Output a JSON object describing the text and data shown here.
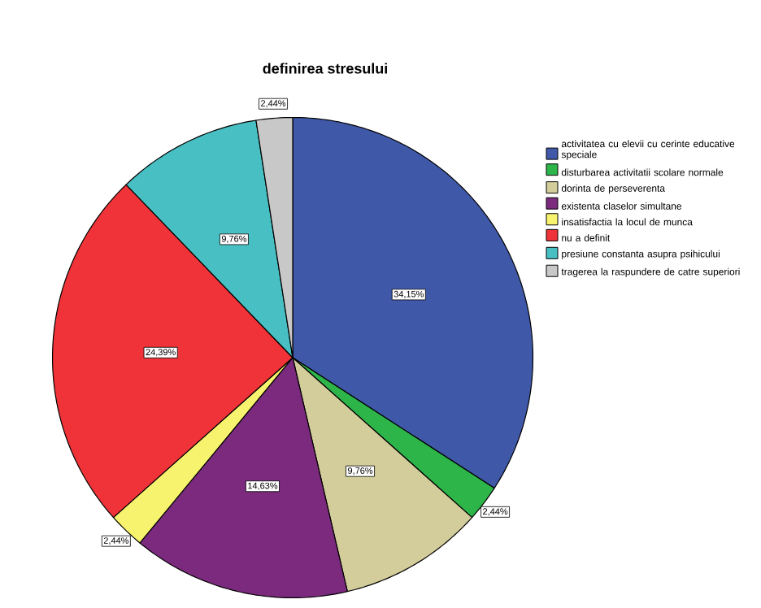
{
  "chart_data": {
    "type": "pie",
    "title": "definirea stresului",
    "categories": [
      "activitatea cu elevii cu cerinte educative speciale",
      "disturbarea activitatii scolare normale",
      "dorinta de perseverenta",
      "existenta claselor simultane",
      "insatisfactia la locul de munca",
      "nu a definit",
      "presiune constanta asupra psihicului",
      "tragerea la raspundere de catre superiori"
    ],
    "values": [
      34.15,
      2.44,
      9.76,
      14.63,
      2.44,
      24.39,
      9.76,
      2.44
    ],
    "value_labels": [
      "34,15%",
      "2,44%",
      "9,76%",
      "14,63%",
      "2,44%",
      "24,39%",
      "9,76%",
      "2,44%"
    ],
    "colors": [
      "#3f58a8",
      "#2db54a",
      "#d3cd9b",
      "#7b2a7d",
      "#f7f36f",
      "#ef3338",
      "#48c0c3",
      "#c8c8c8"
    ],
    "legend": "right"
  }
}
